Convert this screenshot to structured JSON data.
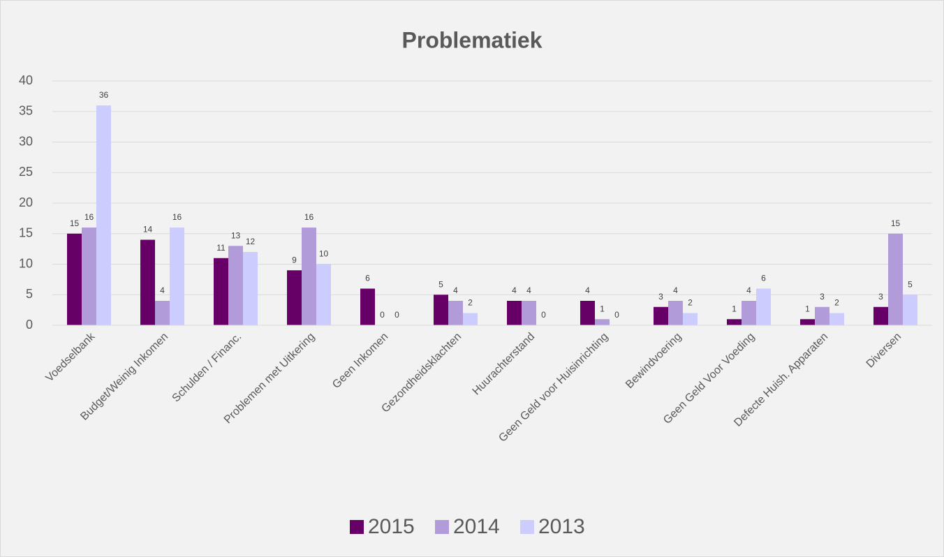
{
  "chart_data": {
    "type": "bar",
    "title": "Problematiek",
    "categories": [
      "Voedselbank",
      "Budget/Weinig Inkomen",
      "Schulden / Financ.",
      "Problemen met Uitkering",
      "Geen Inkomen",
      "Gezondheidsklachten",
      "Huurachterstand",
      "Geen Geld voor Huisinrichting",
      "Bewindvoering",
      "Geen Geld Voor Voeding",
      "Defecte Huish. Apparaten",
      "Diversen"
    ],
    "series": [
      {
        "name": "2015",
        "color": "#660066",
        "values": [
          15,
          14,
          11,
          9,
          6,
          5,
          4,
          4,
          3,
          1,
          1,
          3
        ]
      },
      {
        "name": "2014",
        "color": "#b19cd9",
        "values": [
          16,
          4,
          13,
          16,
          0,
          4,
          4,
          1,
          4,
          4,
          3,
          15
        ]
      },
      {
        "name": "2013",
        "color": "#ccccff",
        "values": [
          36,
          16,
          12,
          10,
          0,
          2,
          0,
          0,
          2,
          6,
          2,
          5
        ]
      }
    ],
    "ylim": [
      0,
      40
    ],
    "yticks": [
      0,
      5,
      10,
      15,
      20,
      25,
      30,
      35,
      40
    ],
    "grid": true,
    "legend": "bottom"
  }
}
